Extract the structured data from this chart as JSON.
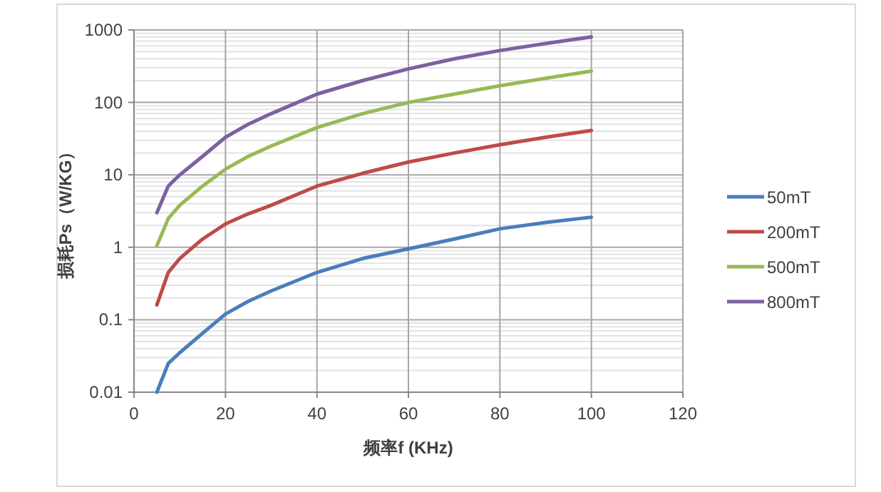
{
  "chart_data": {
    "type": "line",
    "xlabel": "频率f (KHz)",
    "ylabel": "损耗Ps（W/KG）",
    "x": [
      5,
      7.5,
      10,
      15,
      20,
      25,
      30,
      40,
      50,
      60,
      70,
      80,
      90,
      100
    ],
    "series": [
      {
        "name": "50mT",
        "color": "#4a7ebb",
        "values": [
          0.01,
          0.025,
          0.035,
          0.065,
          0.12,
          0.18,
          0.25,
          0.45,
          0.7,
          0.95,
          1.3,
          1.8,
          2.2,
          2.6
        ]
      },
      {
        "name": "200mT",
        "color": "#be4b48",
        "values": [
          0.16,
          0.45,
          0.7,
          1.3,
          2.1,
          2.9,
          3.8,
          7,
          10.5,
          15,
          20,
          26,
          33,
          41
        ]
      },
      {
        "name": "500mT",
        "color": "#98b954",
        "values": [
          1.05,
          2.5,
          3.8,
          7,
          12,
          18,
          25,
          45,
          70,
          100,
          130,
          170,
          215,
          270
        ]
      },
      {
        "name": "800mT",
        "color": "#7d60a0",
        "values": [
          3,
          7,
          10,
          18,
          33,
          50,
          70,
          130,
          200,
          290,
          400,
          520,
          650,
          800
        ]
      }
    ],
    "xlim": [
      0,
      120
    ],
    "xticks": [
      0,
      20,
      40,
      60,
      80,
      100,
      120
    ],
    "ylim": [
      0.01,
      1000
    ],
    "yticks": [
      0.01,
      0.1,
      1,
      10,
      100,
      1000
    ],
    "log": "y",
    "grid": true,
    "legend": "right",
    "marker": "none",
    "line_style": "solid"
  }
}
